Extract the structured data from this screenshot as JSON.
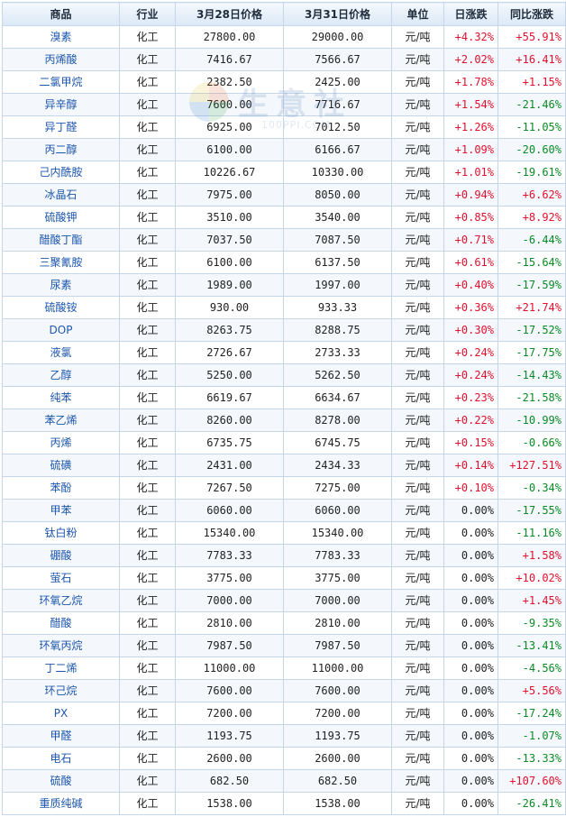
{
  "headers": [
    "商品",
    "行业",
    "3月28日价格",
    "3月31日价格",
    "单位",
    "日涨跌",
    "同比涨跌"
  ],
  "watermark": {
    "text": "生意社",
    "url": "100PPI.COM"
  },
  "rows": [
    {
      "name": "溴素",
      "ind": "化工",
      "p1": "27800.00",
      "p2": "29000.00",
      "unit": "元/吨",
      "day": "+4.32%",
      "yoy": "+55.91%"
    },
    {
      "name": "丙烯酸",
      "ind": "化工",
      "p1": "7416.67",
      "p2": "7566.67",
      "unit": "元/吨",
      "day": "+2.02%",
      "yoy": "+16.41%"
    },
    {
      "name": "二氯甲烷",
      "ind": "化工",
      "p1": "2382.50",
      "p2": "2425.00",
      "unit": "元/吨",
      "day": "+1.78%",
      "yoy": "+1.15%"
    },
    {
      "name": "异辛醇",
      "ind": "化工",
      "p1": "7600.00",
      "p2": "7716.67",
      "unit": "元/吨",
      "day": "+1.54%",
      "yoy": "-21.46%"
    },
    {
      "name": "异丁醛",
      "ind": "化工",
      "p1": "6925.00",
      "p2": "7012.50",
      "unit": "元/吨",
      "day": "+1.26%",
      "yoy": "-11.05%"
    },
    {
      "name": "丙二醇",
      "ind": "化工",
      "p1": "6100.00",
      "p2": "6166.67",
      "unit": "元/吨",
      "day": "+1.09%",
      "yoy": "-20.60%"
    },
    {
      "name": "己内酰胺",
      "ind": "化工",
      "p1": "10226.67",
      "p2": "10330.00",
      "unit": "元/吨",
      "day": "+1.01%",
      "yoy": "-19.61%"
    },
    {
      "name": "冰晶石",
      "ind": "化工",
      "p1": "7975.00",
      "p2": "8050.00",
      "unit": "元/吨",
      "day": "+0.94%",
      "yoy": "+6.62%"
    },
    {
      "name": "硫酸钾",
      "ind": "化工",
      "p1": "3510.00",
      "p2": "3540.00",
      "unit": "元/吨",
      "day": "+0.85%",
      "yoy": "+8.92%"
    },
    {
      "name": "醋酸丁酯",
      "ind": "化工",
      "p1": "7037.50",
      "p2": "7087.50",
      "unit": "元/吨",
      "day": "+0.71%",
      "yoy": "-6.44%"
    },
    {
      "name": "三聚氰胺",
      "ind": "化工",
      "p1": "6100.00",
      "p2": "6137.50",
      "unit": "元/吨",
      "day": "+0.61%",
      "yoy": "-15.64%"
    },
    {
      "name": "尿素",
      "ind": "化工",
      "p1": "1989.00",
      "p2": "1997.00",
      "unit": "元/吨",
      "day": "+0.40%",
      "yoy": "-17.59%"
    },
    {
      "name": "硫酸铵",
      "ind": "化工",
      "p1": "930.00",
      "p2": "933.33",
      "unit": "元/吨",
      "day": "+0.36%",
      "yoy": "+21.74%"
    },
    {
      "name": "DOP",
      "ind": "化工",
      "p1": "8263.75",
      "p2": "8288.75",
      "unit": "元/吨",
      "day": "+0.30%",
      "yoy": "-17.52%"
    },
    {
      "name": "液氯",
      "ind": "化工",
      "p1": "2726.67",
      "p2": "2733.33",
      "unit": "元/吨",
      "day": "+0.24%",
      "yoy": "-17.75%"
    },
    {
      "name": "乙醇",
      "ind": "化工",
      "p1": "5250.00",
      "p2": "5262.50",
      "unit": "元/吨",
      "day": "+0.24%",
      "yoy": "-14.43%"
    },
    {
      "name": "纯苯",
      "ind": "化工",
      "p1": "6619.67",
      "p2": "6634.67",
      "unit": "元/吨",
      "day": "+0.23%",
      "yoy": "-21.58%"
    },
    {
      "name": "苯乙烯",
      "ind": "化工",
      "p1": "8260.00",
      "p2": "8278.00",
      "unit": "元/吨",
      "day": "+0.22%",
      "yoy": "-10.99%"
    },
    {
      "name": "丙烯",
      "ind": "化工",
      "p1": "6735.75",
      "p2": "6745.75",
      "unit": "元/吨",
      "day": "+0.15%",
      "yoy": "-0.66%"
    },
    {
      "name": "硫磺",
      "ind": "化工",
      "p1": "2431.00",
      "p2": "2434.33",
      "unit": "元/吨",
      "day": "+0.14%",
      "yoy": "+127.51%"
    },
    {
      "name": "苯酚",
      "ind": "化工",
      "p1": "7267.50",
      "p2": "7275.00",
      "unit": "元/吨",
      "day": "+0.10%",
      "yoy": "-0.34%"
    },
    {
      "name": "甲苯",
      "ind": "化工",
      "p1": "6060.00",
      "p2": "6060.00",
      "unit": "元/吨",
      "day": "0.00%",
      "yoy": "-17.55%"
    },
    {
      "name": "钛白粉",
      "ind": "化工",
      "p1": "15340.00",
      "p2": "15340.00",
      "unit": "元/吨",
      "day": "0.00%",
      "yoy": "-11.16%"
    },
    {
      "name": "硼酸",
      "ind": "化工",
      "p1": "7783.33",
      "p2": "7783.33",
      "unit": "元/吨",
      "day": "0.00%",
      "yoy": "+1.58%"
    },
    {
      "name": "萤石",
      "ind": "化工",
      "p1": "3775.00",
      "p2": "3775.00",
      "unit": "元/吨",
      "day": "0.00%",
      "yoy": "+10.02%"
    },
    {
      "name": "环氧乙烷",
      "ind": "化工",
      "p1": "7000.00",
      "p2": "7000.00",
      "unit": "元/吨",
      "day": "0.00%",
      "yoy": "+1.45%"
    },
    {
      "name": "醋酸",
      "ind": "化工",
      "p1": "2810.00",
      "p2": "2810.00",
      "unit": "元/吨",
      "day": "0.00%",
      "yoy": "-9.35%"
    },
    {
      "name": "环氧丙烷",
      "ind": "化工",
      "p1": "7987.50",
      "p2": "7987.50",
      "unit": "元/吨",
      "day": "0.00%",
      "yoy": "-13.41%"
    },
    {
      "name": "丁二烯",
      "ind": "化工",
      "p1": "11000.00",
      "p2": "11000.00",
      "unit": "元/吨",
      "day": "0.00%",
      "yoy": "-4.56%"
    },
    {
      "name": "环己烷",
      "ind": "化工",
      "p1": "7600.00",
      "p2": "7600.00",
      "unit": "元/吨",
      "day": "0.00%",
      "yoy": "+5.56%"
    },
    {
      "name": "PX",
      "ind": "化工",
      "p1": "7200.00",
      "p2": "7200.00",
      "unit": "元/吨",
      "day": "0.00%",
      "yoy": "-17.24%"
    },
    {
      "name": "甲醛",
      "ind": "化工",
      "p1": "1193.75",
      "p2": "1193.75",
      "unit": "元/吨",
      "day": "0.00%",
      "yoy": "-1.07%"
    },
    {
      "name": "电石",
      "ind": "化工",
      "p1": "2600.00",
      "p2": "2600.00",
      "unit": "元/吨",
      "day": "0.00%",
      "yoy": "-13.33%"
    },
    {
      "name": "硫酸",
      "ind": "化工",
      "p1": "682.50",
      "p2": "682.50",
      "unit": "元/吨",
      "day": "0.00%",
      "yoy": "+107.60%"
    },
    {
      "name": "重质纯碱",
      "ind": "化工",
      "p1": "1538.00",
      "p2": "1538.00",
      "unit": "元/吨",
      "day": "0.00%",
      "yoy": "-26.41%"
    }
  ]
}
